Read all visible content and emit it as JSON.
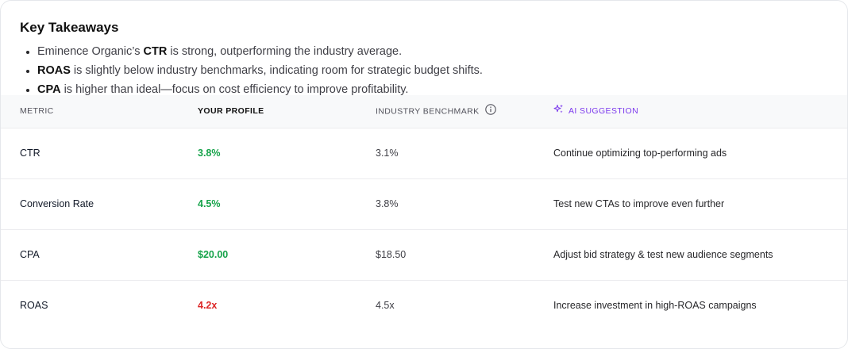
{
  "takeaways": {
    "title": "Key Takeaways",
    "items": [
      {
        "lead": "Eminence Organic’s ",
        "bold": "CTR",
        "rest": " is strong, outperforming the industry average."
      },
      {
        "lead": "",
        "bold": "ROAS",
        "rest": " is slightly below industry benchmarks, indicating room for strategic budget shifts."
      },
      {
        "lead": "",
        "bold": "CPA",
        "rest": " is higher than ideal—focus on cost efficiency to improve profitability."
      }
    ]
  },
  "table": {
    "headers": {
      "metric": "METRIC",
      "profile": "YOUR PROFILE",
      "benchmark": "INDUSTRY BENCHMARK",
      "suggestion": "AI SUGGESTION"
    },
    "rows": [
      {
        "metric": "CTR",
        "profile": "3.8%",
        "benchmark": "3.1%",
        "suggestion": "Continue optimizing top-performing ads",
        "status": "good"
      },
      {
        "metric": "Conversion Rate",
        "profile": "4.5%",
        "benchmark": "3.8%",
        "suggestion": "Test new CTAs to improve even further",
        "status": "good"
      },
      {
        "metric": "CPA",
        "profile": "$20.00",
        "benchmark": "$18.50",
        "suggestion": "Adjust bid strategy & test new audience segments",
        "status": "good"
      },
      {
        "metric": "ROAS",
        "profile": "4.2x",
        "benchmark": "4.5x",
        "suggestion": "Increase investment in high-ROAS campaigns",
        "status": "bad"
      }
    ]
  },
  "colors": {
    "good": "#16a34a",
    "bad": "#dc2626",
    "ai_accent": "#7c3aed"
  },
  "icons": {
    "info": "info-circle-icon",
    "ai": "sparkle-icon"
  }
}
